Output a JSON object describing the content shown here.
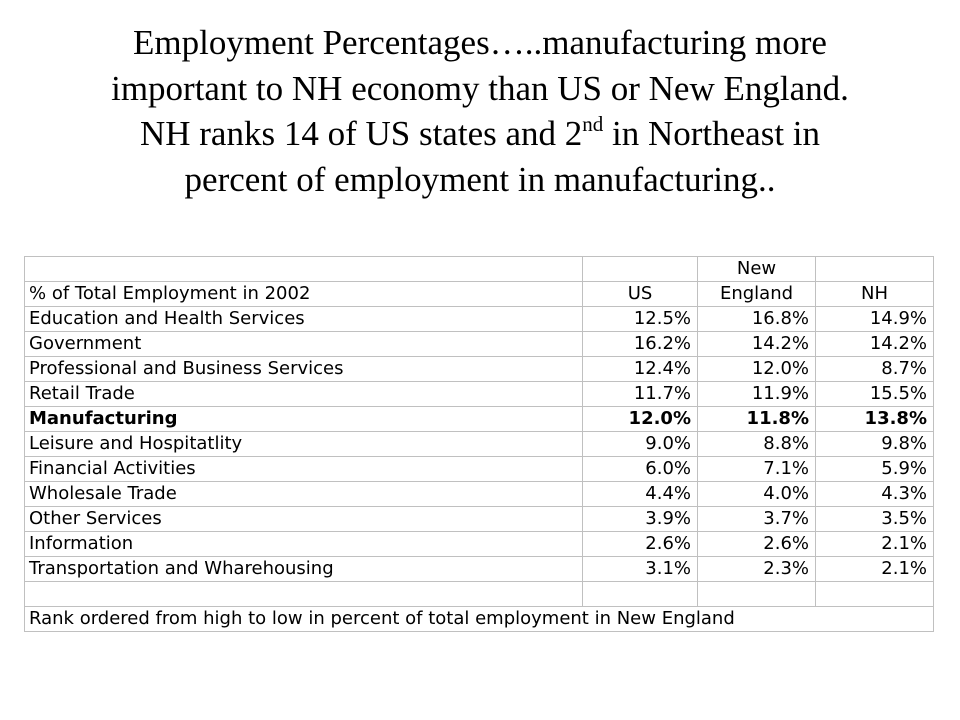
{
  "title": {
    "line1": "Employment Percentages…..manufacturing more",
    "line2": "important to NH economy than US or New England.",
    "line3_pre": "NH ranks 14 of US states and 2",
    "line3_sup": "nd",
    "line3_post": " in Northeast in",
    "line4": "percent of employment in manufacturing.."
  },
  "table": {
    "header_top": [
      "",
      "",
      "New",
      ""
    ],
    "header": [
      "% of Total Employment in 2002",
      "US",
      "England",
      "NH"
    ],
    "rows": [
      {
        "label": "Education and Health Services",
        "us": "12.5%",
        "ne": "16.8%",
        "nh": "14.9%",
        "bold": false
      },
      {
        "label": "Government",
        "us": "16.2%",
        "ne": "14.2%",
        "nh": "14.2%",
        "bold": false
      },
      {
        "label": "Professional and Business Services",
        "us": "12.4%",
        "ne": "12.0%",
        "nh": "8.7%",
        "bold": false
      },
      {
        "label": "Retail Trade",
        "us": "11.7%",
        "ne": "11.9%",
        "nh": "15.5%",
        "bold": false
      },
      {
        "label": "Manufacturing",
        "us": "12.0%",
        "ne": "11.8%",
        "nh": "13.8%",
        "bold": true
      },
      {
        "label": "Leisure and Hospitatlity",
        "us": "9.0%",
        "ne": "8.8%",
        "nh": "9.8%",
        "bold": false
      },
      {
        "label": "Financial Activities",
        "us": "6.0%",
        "ne": "7.1%",
        "nh": "5.9%",
        "bold": false
      },
      {
        "label": "Wholesale Trade",
        "us": "4.4%",
        "ne": "4.0%",
        "nh": "4.3%",
        "bold": false
      },
      {
        "label": "Other Services",
        "us": "3.9%",
        "ne": "3.7%",
        "nh": "3.5%",
        "bold": false
      },
      {
        "label": "Information",
        "us": "2.6%",
        "ne": "2.6%",
        "nh": "2.1%",
        "bold": false
      },
      {
        "label": "Transportation and Wharehousing",
        "us": "3.1%",
        "ne": "2.3%",
        "nh": "2.1%",
        "bold": false
      }
    ],
    "footnote": "Rank ordered from high to low in percent of total employment in New England"
  }
}
